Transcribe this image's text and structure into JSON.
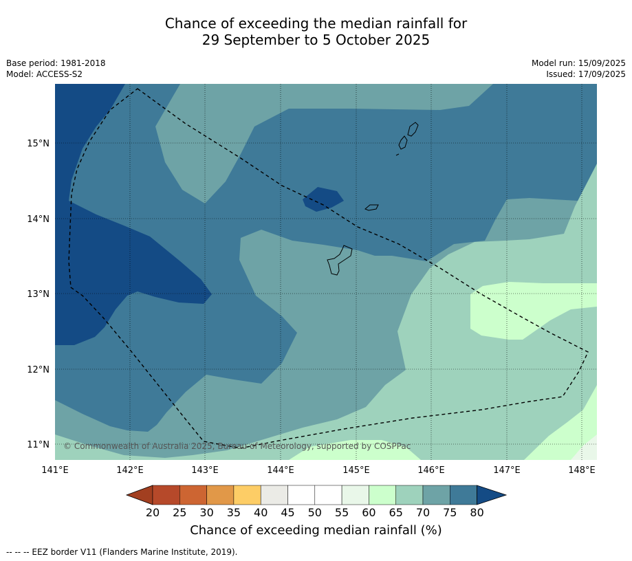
{
  "title_line1": "Chance of exceeding the median rainfall for",
  "title_line2": "29 September to 5 October 2025",
  "base_period": "Base period: 1981-2018",
  "model": "Model: ACCESS-S2",
  "model_run": "Model run: 15/09/2025",
  "issued": "Issued: 17/09/2025",
  "copyright": "© Commonwealth of Australia 2025, Bureau of Meteorology, supported by COSPPac",
  "lat_labels": [
    "15°N",
    "14°N",
    "13°N",
    "12°N",
    "11°N"
  ],
  "lon_labels": [
    "141°E",
    "142°E",
    "143°E",
    "144°E",
    "145°E",
    "146°E",
    "147°E",
    "148°E"
  ],
  "colorbar": {
    "title": "Chance of exceeding median rainfall (%)",
    "ticks": [
      "20",
      "25",
      "30",
      "35",
      "40",
      "45",
      "50",
      "55",
      "60",
      "65",
      "70",
      "75",
      "80"
    ],
    "colors": [
      "#a23f20",
      "#b6492a",
      "#cd6532",
      "#e19848",
      "#fdcd66",
      "#ebebe6",
      "#ffffff",
      "#ffffff",
      "#e9f7e9",
      "#ccffcc",
      "#9ed2bc",
      "#6ea3a6",
      "#3f7a98",
      "#144b85"
    ]
  },
  "footer": "-- -- -- EEZ border V11 (Flanders Marine Institute, 2019).",
  "colors": {
    "p80": "#144b85",
    "p75": "#3f7a98",
    "p70": "#6ea3a6",
    "p65": "#9ed2bc",
    "p60": "#ccffcc",
    "p55": "#e9f7e9"
  }
}
